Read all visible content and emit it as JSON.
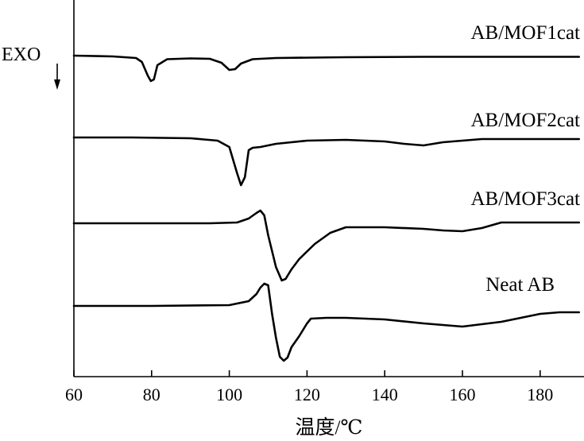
{
  "chart_data": {
    "type": "line",
    "title": "",
    "xlabel": "温度/℃",
    "ylabel": "",
    "exo_label": "EXO",
    "exo_direction": "down",
    "xlim": [
      60,
      190
    ],
    "xticks": [
      60,
      80,
      100,
      120,
      140,
      160,
      180
    ],
    "y_ticks_shown": false,
    "grid": false,
    "series": [
      {
        "name": "AB/MOF1cat",
        "x": [
          60,
          70,
          76,
          77.5,
          79,
          79.8,
          80.6,
          81.5,
          84,
          90,
          95,
          98,
          100,
          101.5,
          103,
          106,
          112,
          130,
          150,
          170,
          190
        ],
        "y": [
          0,
          -0.1,
          -0.3,
          -0.8,
          -2.5,
          -3.2,
          -3.0,
          -1.2,
          -0.45,
          -0.35,
          -0.4,
          -0.9,
          -1.8,
          -1.7,
          -1.0,
          -0.45,
          -0.3,
          -0.2,
          -0.15,
          -0.15,
          -0.15
        ]
      },
      {
        "name": "AB/MOF2cat",
        "x": [
          60,
          75,
          90,
          97,
          100,
          102,
          103,
          104,
          105,
          106,
          108,
          112,
          120,
          130,
          140,
          145,
          150,
          155,
          165,
          175,
          190
        ],
        "y": [
          0,
          0,
          -0.1,
          -0.4,
          -1.2,
          -4.5,
          -6.0,
          -5.0,
          -1.6,
          -1.3,
          -1.2,
          -0.8,
          -0.4,
          -0.3,
          -0.5,
          -0.8,
          -1.0,
          -0.6,
          -0.2,
          -0.2,
          -0.2
        ]
      },
      {
        "name": "AB/MOF3cat",
        "x": [
          60,
          80,
          95,
          102,
          105,
          107,
          108,
          109,
          110,
          112,
          113.5,
          114.5,
          116,
          118,
          122,
          126,
          130,
          140,
          150,
          155,
          160,
          165,
          170,
          180,
          190
        ],
        "y": [
          0,
          0,
          0,
          0.1,
          0.6,
          1.3,
          1.6,
          1.0,
          -1.5,
          -5.5,
          -7.2,
          -7.0,
          -5.8,
          -4.5,
          -2.6,
          -1.2,
          -0.5,
          -0.5,
          -0.7,
          -0.9,
          -1.0,
          -0.6,
          0.1,
          0.1,
          0.1
        ]
      },
      {
        "name": "Neat AB",
        "x": [
          60,
          80,
          100,
          105,
          107,
          108,
          109,
          110,
          111,
          112,
          113,
          114,
          115,
          116,
          118,
          120,
          121,
          125,
          130,
          140,
          150,
          155,
          160,
          170,
          180,
          185,
          190
        ],
        "y": [
          0,
          0,
          0.1,
          0.6,
          1.5,
          2.3,
          2.8,
          2.6,
          -1.0,
          -4.0,
          -6.4,
          -6.9,
          -6.5,
          -5.2,
          -3.8,
          -2.2,
          -1.6,
          -1.5,
          -1.5,
          -1.7,
          -2.2,
          -2.4,
          -2.6,
          -2.0,
          -1.0,
          -0.8,
          -0.8
        ]
      }
    ]
  }
}
